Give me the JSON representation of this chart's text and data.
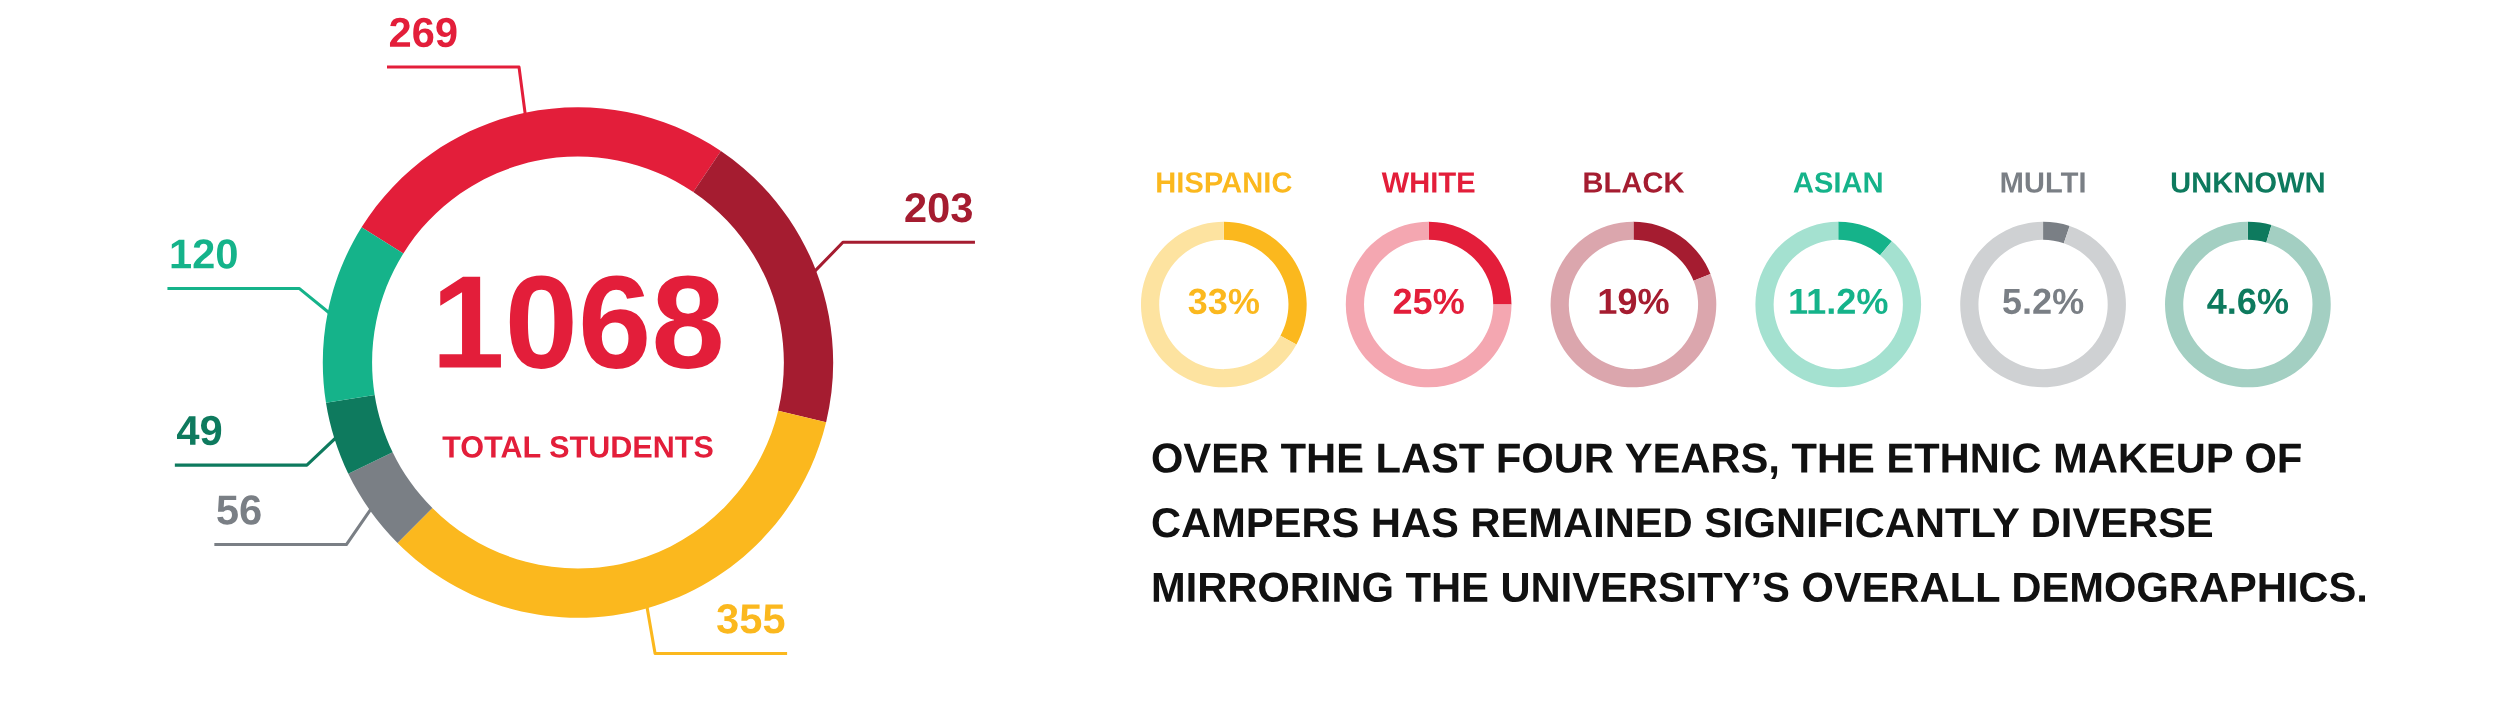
{
  "chart_data": [
    {
      "type": "donut",
      "categories": [
        null,
        null,
        null,
        null,
        null,
        null
      ],
      "values": [
        269,
        203,
        355,
        56,
        49,
        120
      ],
      "colors": [
        "#e31e3a",
        "#a51c30",
        "#fbb81e",
        "#7a7f85",
        "#0e7a5e",
        "#15b38a"
      ],
      "data_labels": true,
      "annotations": [
        "1068",
        "TOTAL STUDENTS"
      ]
    },
    {
      "type": "donut",
      "title": "HISPANIC",
      "categories": [
        null,
        null
      ],
      "values": [
        33,
        67
      ],
      "colors": [
        "#fbb81e",
        "#fde3a0"
      ],
      "value_labels": [
        "33%",
        null
      ]
    },
    {
      "type": "donut",
      "title": "WHITE",
      "categories": [
        null,
        null
      ],
      "values": [
        25,
        75
      ],
      "colors": [
        "#e31e3a",
        "#f4a7b1"
      ],
      "value_labels": [
        "25%",
        null
      ]
    },
    {
      "type": "donut",
      "title": "BLACK",
      "categories": [
        null,
        null
      ],
      "values": [
        19,
        81
      ],
      "colors": [
        "#a51c30",
        "#dba6ad"
      ],
      "value_labels": [
        "19%",
        null
      ]
    },
    {
      "type": "donut",
      "title": "ASIAN",
      "categories": [
        null,
        null
      ],
      "values": [
        11.2,
        88.8
      ],
      "colors": [
        "#15b38a",
        "#a4e1d0"
      ],
      "value_labels": [
        "11.2%",
        null
      ]
    },
    {
      "type": "donut",
      "title": "MULTI",
      "categories": [
        null,
        null
      ],
      "values": [
        5.2,
        94.8
      ],
      "colors": [
        "#7a7f85",
        "#cfd1d3"
      ],
      "value_labels": [
        "5.2%",
        null
      ]
    },
    {
      "type": "donut",
      "title": "UNKNOWN",
      "categories": [
        null,
        null
      ],
      "values": [
        4.6,
        95.4
      ],
      "colors": [
        "#0e7a5e",
        "#a3cfc2"
      ],
      "value_labels": [
        "4.6%",
        null
      ]
    },
    {
      "type": "other",
      "annotations": [
        "OVER THE LAST FOUR YEARS, THE ETHNIC MAKEUP OF",
        "CAMPERS HAS REMAINED SIGNIFICANTLY DIVERSE",
        "MIRRORING THE UNIVERSITY’S OVERALL DEMOGRAPHICS."
      ]
    }
  ]
}
